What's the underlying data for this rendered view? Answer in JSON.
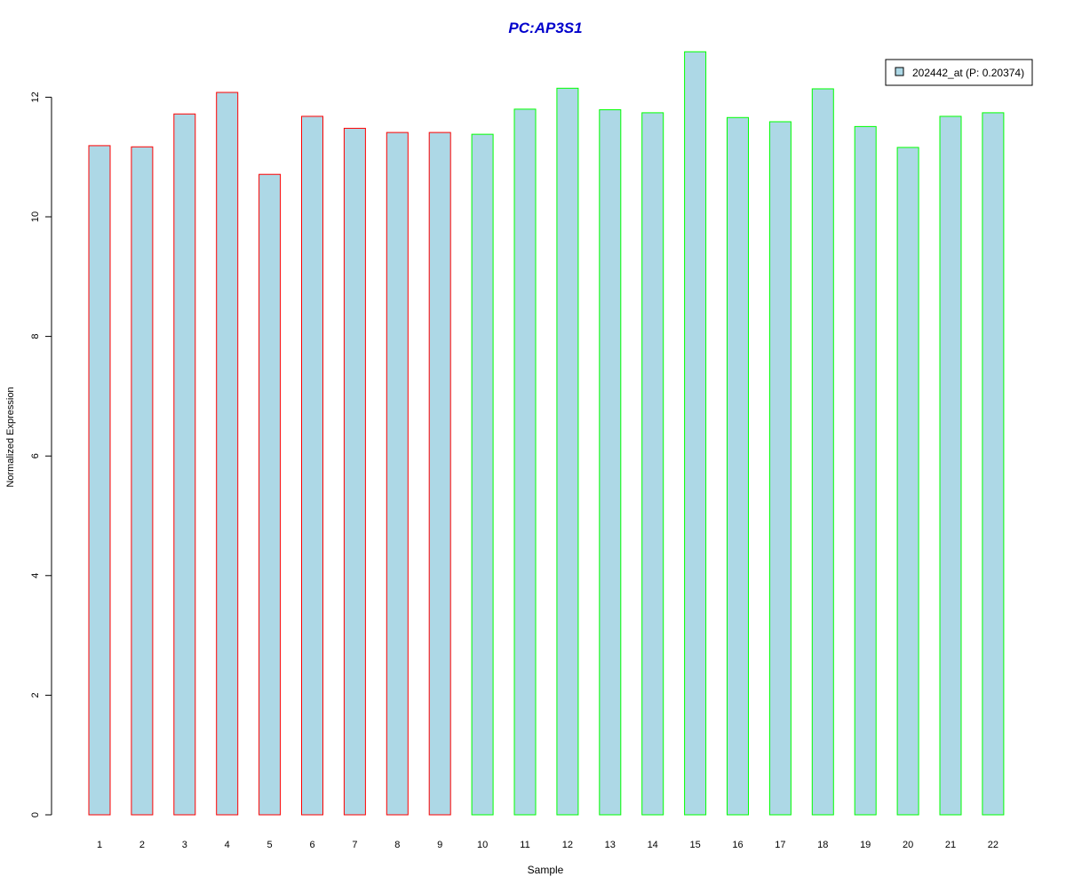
{
  "chart_data": {
    "type": "bar",
    "title": "PC:AP3S1",
    "xlabel": "Sample",
    "ylabel": "Normalized Expression",
    "ylim": [
      0,
      12.8
    ],
    "yticks": [
      0,
      2,
      4,
      6,
      8,
      10,
      12
    ],
    "categories": [
      "1",
      "2",
      "3",
      "4",
      "5",
      "6",
      "7",
      "8",
      "9",
      "10",
      "11",
      "12",
      "13",
      "14",
      "15",
      "16",
      "17",
      "18",
      "19",
      "20",
      "21",
      "22"
    ],
    "series": [
      {
        "name": "202442_at (P: 0.20374)",
        "values": [
          11.19,
          11.17,
          11.72,
          12.08,
          10.71,
          11.68,
          11.48,
          11.41,
          11.41,
          11.38,
          11.8,
          12.15,
          11.79,
          11.74,
          12.76,
          11.66,
          11.59,
          12.14,
          11.51,
          11.16,
          11.68,
          11.74
        ]
      }
    ],
    "groups": [
      {
        "samples": [
          1,
          2,
          3,
          4,
          5,
          6,
          7,
          8,
          9
        ],
        "color": "#ff0000"
      },
      {
        "samples": [
          10,
          11,
          12,
          13,
          14,
          15,
          16,
          17,
          18,
          19,
          20,
          21,
          22
        ],
        "color": "#00ff00"
      }
    ],
    "bar_fill": "#add8e6",
    "title_color": "#0000cc",
    "legend_position": "top-right",
    "grid": false
  }
}
